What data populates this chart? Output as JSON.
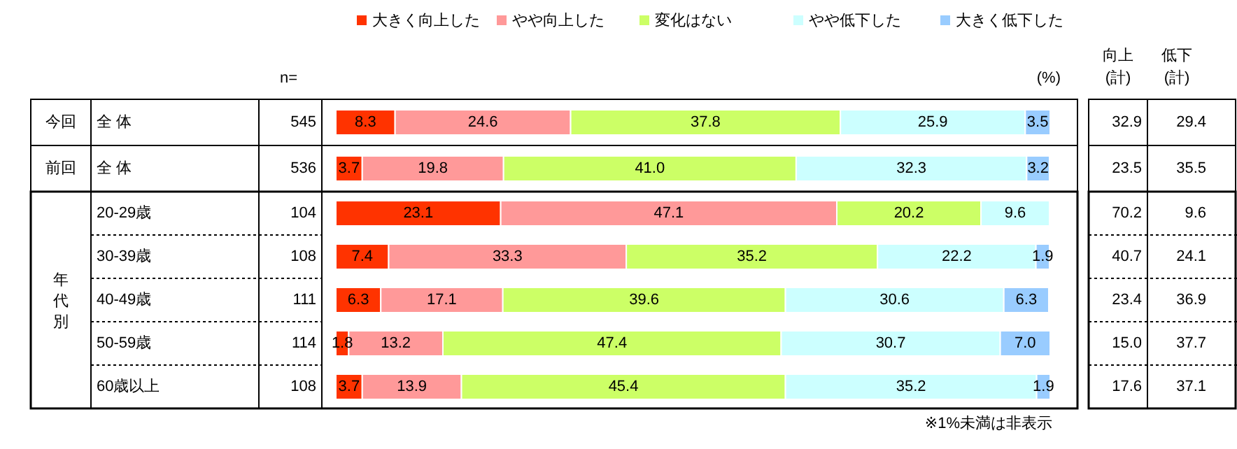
{
  "chart_data": {
    "type": "bar",
    "orientation": "horizontal",
    "stacked": true,
    "legend": "top",
    "tick_labels": "y",
    "xlim": [
      0,
      100
    ],
    "categories": [
      "全 体",
      "全 体",
      "20-29歳",
      "30-39歳",
      "40-49歳",
      "50-59歳",
      "60歳以上"
    ],
    "series": [
      {
        "name": "大きく向上した",
        "color": "#ff3300",
        "values": [
          8.3,
          3.7,
          23.1,
          7.4,
          6.3,
          1.8,
          3.7
        ],
        "value_labels": [
          "8.3",
          "3.7",
          "23.1",
          "7.4",
          "6.3",
          "1.8",
          "3.7"
        ]
      },
      {
        "name": "やや向上した",
        "color": "#ff9999",
        "values": [
          24.6,
          19.8,
          47.1,
          33.3,
          17.1,
          13.2,
          13.9
        ],
        "value_labels": [
          "24.6",
          "19.8",
          "47.1",
          "33.3",
          "17.1",
          "13.2",
          "13.9"
        ]
      },
      {
        "name": "変化はない",
        "color": "#ccff66",
        "values": [
          37.8,
          41.0,
          20.2,
          35.2,
          39.6,
          47.4,
          45.4
        ],
        "value_labels": [
          "37.8",
          "41.0",
          "20.2",
          "35.2",
          "39.6",
          "47.4",
          "45.4"
        ]
      },
      {
        "name": "やや低下した",
        "color": "#ccffff",
        "values": [
          25.9,
          32.3,
          9.6,
          22.2,
          30.6,
          30.7,
          35.2
        ],
        "value_labels": [
          "25.9",
          "32.3",
          "9.6",
          "22.2",
          "30.6",
          "30.7",
          "35.2"
        ]
      },
      {
        "name": "大きく低下した",
        "color": "#99ccff",
        "values": [
          3.5,
          3.2,
          0,
          1.9,
          6.3,
          7.0,
          1.9
        ],
        "value_labels": [
          "3.5",
          "3.2",
          null,
          "1.9",
          "6.3",
          "7.0",
          "1.9"
        ]
      }
    ],
    "annotations": [
      "今回",
      "前回",
      "年代別",
      "n=",
      "(%)",
      "向上\n(計)",
      "低下\n(計)",
      "545",
      "536",
      "104",
      "108",
      "111",
      "114",
      "108",
      "32.9",
      "23.5",
      "70.2",
      "40.7",
      "23.4",
      "15.0",
      "17.6",
      "29.4",
      "35.5",
      "9.6",
      "24.1",
      "36.9",
      "37.7",
      "37.1",
      "※1%未満は非表示"
    ]
  }
}
